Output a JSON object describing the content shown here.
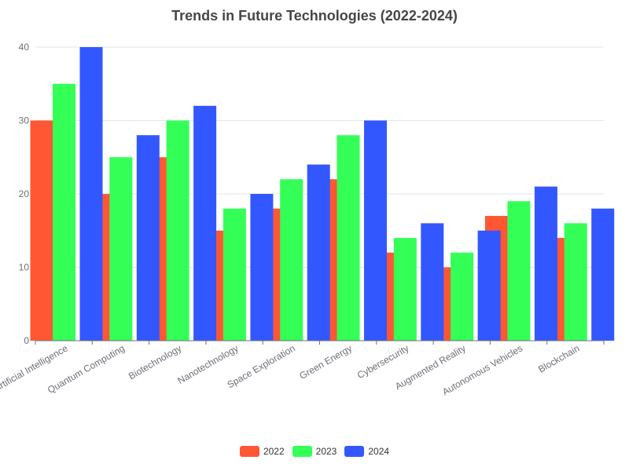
{
  "chart_data": {
    "type": "bar",
    "title": "Trends in Future Technologies (2022-2024)",
    "categories": [
      "Artificial Intelligence",
      "Quantum Computing",
      "Biotechnology",
      "Nanotechnology",
      "Space Exploration",
      "Green Energy",
      "Cybersecurity",
      "Augmented Reality",
      "Autonomous Vehicles",
      "Blockchain"
    ],
    "series": [
      {
        "name": "2022",
        "color": "#ff5733",
        "values": [
          30,
          20,
          25,
          15,
          18,
          22,
          12,
          10,
          17,
          14
        ]
      },
      {
        "name": "2023",
        "color": "#33ff57",
        "values": [
          35,
          25,
          30,
          18,
          22,
          28,
          14,
          12,
          19,
          16
        ]
      },
      {
        "name": "2024",
        "color": "#3357ff",
        "values": [
          40,
          28,
          32,
          20,
          24,
          30,
          16,
          15,
          21,
          18
        ]
      }
    ],
    "ylim": [
      0,
      40
    ],
    "yticks": [
      0,
      10,
      20,
      30,
      40
    ],
    "grid": true,
    "legend_position": "bottom"
  }
}
